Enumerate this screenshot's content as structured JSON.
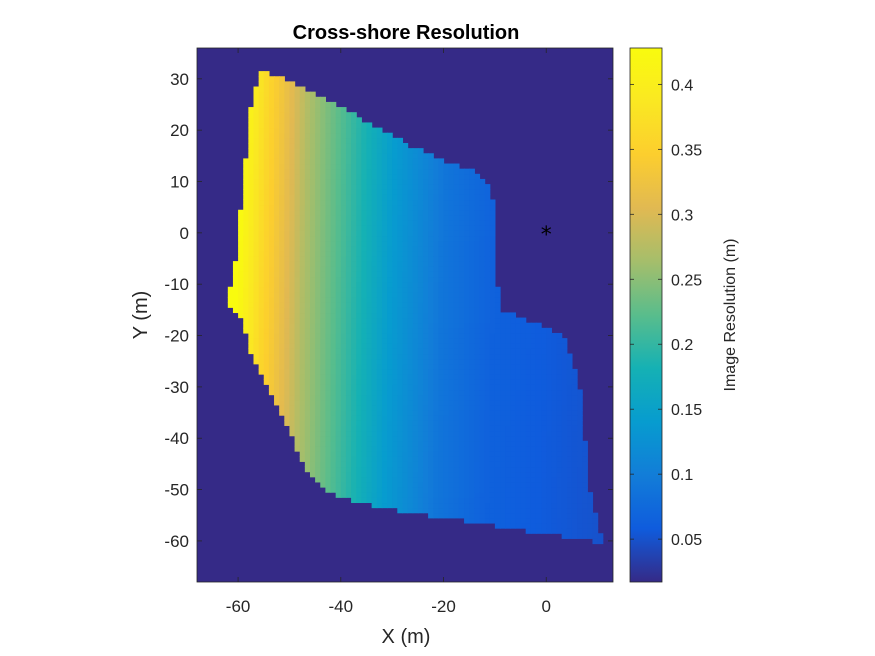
{
  "chart_data": {
    "type": "heatmap",
    "title": "Cross-shore Resolution",
    "xlabel": "X (m)",
    "ylabel": "Y (m)",
    "xlim": [
      -68,
      13
    ],
    "ylim": [
      -68,
      36
    ],
    "xticks": [
      -60,
      -40,
      -20,
      0
    ],
    "yticks": [
      -60,
      -50,
      -40,
      -30,
      -20,
      -10,
      0,
      10,
      20,
      30
    ],
    "colorbar": {
      "label": "Image Resolution (m)",
      "limits": [
        0.017,
        0.428
      ],
      "ticks": [
        0.05,
        0.1,
        0.15,
        0.2,
        0.25,
        0.3,
        0.35,
        0.4
      ],
      "colormap": "parula"
    },
    "background_value": 0.017,
    "region_boundary": {
      "left_edge": [
        [
          31,
          -55.5
        ],
        [
          25,
          -57
        ],
        [
          15,
          -58
        ],
        [
          5,
          -59
        ],
        [
          0,
          -59.5
        ],
        [
          -5,
          -60
        ],
        [
          -10,
          -61
        ],
        [
          -14,
          -62
        ],
        [
          -17,
          -59
        ],
        [
          -20,
          -58
        ],
        [
          -25,
          -56.5
        ],
        [
          -30,
          -54
        ],
        [
          -35,
          -51.5
        ],
        [
          -40,
          -49
        ],
        [
          -45,
          -47
        ],
        [
          -50,
          -43
        ],
        [
          -52,
          -38
        ],
        [
          -54,
          -29
        ],
        [
          -56,
          -16
        ],
        [
          -58.5,
          0
        ],
        [
          -60,
          9
        ]
      ],
      "right_edge": [
        [
          31,
          -54
        ],
        [
          28,
          -47
        ],
        [
          22,
          -36
        ],
        [
          17,
          -27
        ],
        [
          14,
          -20
        ],
        [
          12,
          -14
        ],
        [
          10,
          -12
        ],
        [
          5,
          -10.5
        ],
        [
          0,
          -10.5
        ],
        [
          -5,
          -10.5
        ],
        [
          -10,
          -10
        ],
        [
          -15,
          -9
        ],
        [
          -20,
          3
        ],
        [
          -30,
          6
        ],
        [
          -40,
          7
        ],
        [
          -50,
          8
        ],
        [
          -58,
          10
        ],
        [
          -60,
          11
        ],
        [
          -62,
          12
        ],
        [
          -63,
          12.5
        ]
      ]
    },
    "value_profile": [
      [
        -60,
        0.428
      ],
      [
        -55,
        0.36
      ],
      [
        -47,
        0.27
      ],
      [
        -38,
        0.2
      ],
      [
        -30,
        0.14
      ],
      [
        -20,
        0.09
      ],
      [
        -10,
        0.065
      ],
      [
        0,
        0.058
      ],
      [
        12,
        0.05
      ]
    ],
    "marker": {
      "symbol": "*",
      "x": 0,
      "y": 0
    }
  }
}
